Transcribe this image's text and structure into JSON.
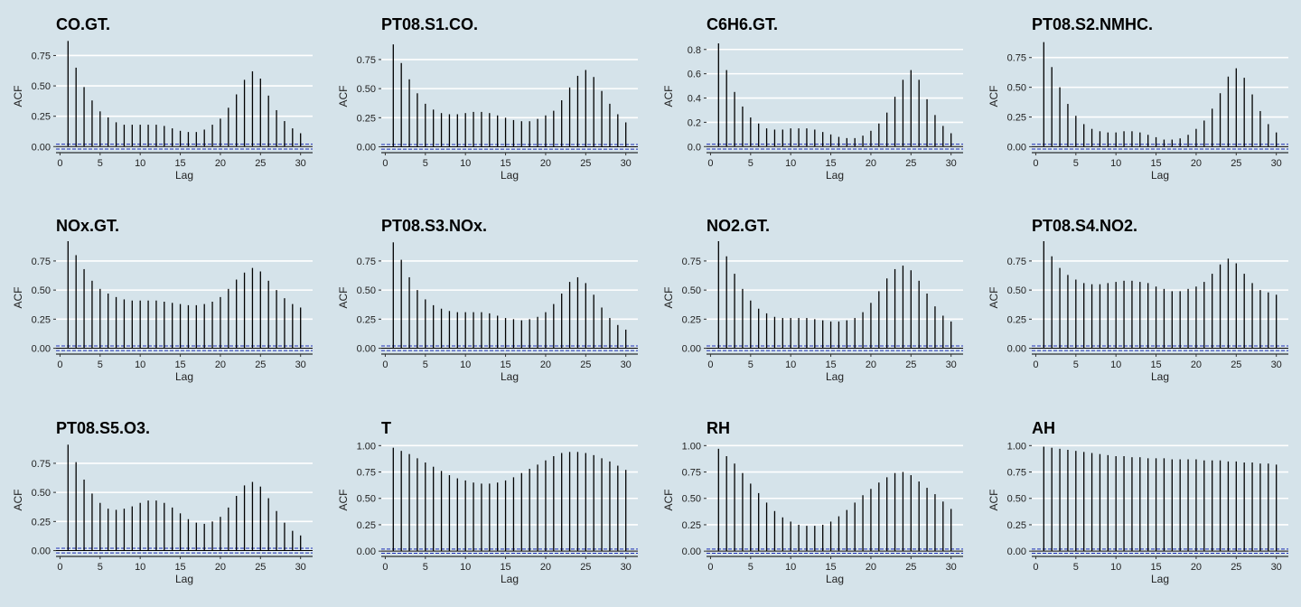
{
  "colors": {
    "background": "#d5e3ea",
    "gridline": "#ffffff",
    "bar": "#000000",
    "confidence_band": "#1f2fb5"
  },
  "chart_data": [
    {
      "type": "bar",
      "title": "CO.GT.",
      "xlabel": "Lag",
      "ylabel": "ACF",
      "xticks": [
        0,
        5,
        10,
        15,
        20,
        25,
        30
      ],
      "yticks": [
        0,
        0.25,
        0.5,
        0.75
      ],
      "ytick_labels": [
        "0.00",
        "0.25",
        "0.50",
        "0.75"
      ],
      "ylim": [
        -0.05,
        0.88
      ],
      "xlim": [
        -0.5,
        31.5
      ],
      "confidence": 0.02,
      "x": [
        1,
        2,
        3,
        4,
        5,
        6,
        7,
        8,
        9,
        10,
        11,
        12,
        13,
        14,
        15,
        16,
        17,
        18,
        19,
        20,
        21,
        22,
        23,
        24,
        25,
        26,
        27,
        28,
        29,
        30
      ],
      "values": [
        0.87,
        0.65,
        0.49,
        0.38,
        0.29,
        0.24,
        0.2,
        0.18,
        0.18,
        0.18,
        0.18,
        0.18,
        0.17,
        0.15,
        0.13,
        0.12,
        0.12,
        0.14,
        0.18,
        0.23,
        0.32,
        0.43,
        0.55,
        0.62,
        0.56,
        0.42,
        0.3,
        0.21,
        0.15,
        0.11
      ]
    },
    {
      "type": "bar",
      "title": "PT08.S1.CO.",
      "xlabel": "Lag",
      "ylabel": "ACF",
      "xticks": [
        0,
        5,
        10,
        15,
        20,
        25,
        30
      ],
      "yticks": [
        0,
        0.25,
        0.5,
        0.75
      ],
      "ytick_labels": [
        "0.00",
        "0.25",
        "0.50",
        "0.75"
      ],
      "ylim": [
        -0.05,
        0.92
      ],
      "xlim": [
        -0.5,
        31.5
      ],
      "confidence": 0.02,
      "x": [
        1,
        2,
        3,
        4,
        5,
        6,
        7,
        8,
        9,
        10,
        11,
        12,
        13,
        14,
        15,
        16,
        17,
        18,
        19,
        20,
        21,
        22,
        23,
        24,
        25,
        26,
        27,
        28,
        29,
        30
      ],
      "values": [
        0.88,
        0.72,
        0.58,
        0.46,
        0.37,
        0.32,
        0.29,
        0.28,
        0.28,
        0.29,
        0.3,
        0.3,
        0.29,
        0.27,
        0.25,
        0.23,
        0.22,
        0.22,
        0.24,
        0.27,
        0.31,
        0.4,
        0.51,
        0.61,
        0.66,
        0.6,
        0.48,
        0.37,
        0.28,
        0.21
      ]
    },
    {
      "type": "bar",
      "title": "C6H6.GT.",
      "xlabel": "Lag",
      "ylabel": "ACF",
      "xticks": [
        0,
        5,
        10,
        15,
        20,
        25,
        30
      ],
      "yticks": [
        0,
        0.2,
        0.4,
        0.6,
        0.8
      ],
      "ytick_labels": [
        "0.0",
        "0.2",
        "0.4",
        "0.6",
        "0.8"
      ],
      "ylim": [
        -0.05,
        0.88
      ],
      "xlim": [
        -0.5,
        31.5
      ],
      "confidence": 0.02,
      "x": [
        1,
        2,
        3,
        4,
        5,
        6,
        7,
        8,
        9,
        10,
        11,
        12,
        13,
        14,
        15,
        16,
        17,
        18,
        19,
        20,
        21,
        22,
        23,
        24,
        25,
        26,
        27,
        28,
        29,
        30
      ],
      "values": [
        0.85,
        0.63,
        0.45,
        0.33,
        0.24,
        0.19,
        0.15,
        0.14,
        0.14,
        0.15,
        0.15,
        0.15,
        0.14,
        0.12,
        0.1,
        0.08,
        0.07,
        0.07,
        0.09,
        0.13,
        0.19,
        0.28,
        0.41,
        0.55,
        0.63,
        0.55,
        0.39,
        0.26,
        0.17,
        0.11
      ]
    },
    {
      "type": "bar",
      "title": "PT08.S2.NMHC.",
      "xlabel": "Lag",
      "ylabel": "ACF",
      "xticks": [
        0,
        5,
        10,
        15,
        20,
        25,
        30
      ],
      "yticks": [
        0,
        0.25,
        0.5,
        0.75
      ],
      "ytick_labels": [
        "0.00",
        "0.25",
        "0.50",
        "0.75"
      ],
      "ylim": [
        -0.05,
        0.9
      ],
      "xlim": [
        -0.5,
        31.5
      ],
      "confidence": 0.02,
      "x": [
        1,
        2,
        3,
        4,
        5,
        6,
        7,
        8,
        9,
        10,
        11,
        12,
        13,
        14,
        15,
        16,
        17,
        18,
        19,
        20,
        21,
        22,
        23,
        24,
        25,
        26,
        27,
        28,
        29,
        30
      ],
      "values": [
        0.88,
        0.67,
        0.5,
        0.36,
        0.26,
        0.19,
        0.15,
        0.13,
        0.12,
        0.12,
        0.13,
        0.13,
        0.12,
        0.1,
        0.08,
        0.06,
        0.06,
        0.07,
        0.1,
        0.15,
        0.22,
        0.32,
        0.45,
        0.59,
        0.66,
        0.58,
        0.44,
        0.3,
        0.19,
        0.12
      ]
    },
    {
      "type": "bar",
      "title": "NOx.GT.",
      "xlabel": "Lag",
      "ylabel": "ACF",
      "xticks": [
        0,
        5,
        10,
        15,
        20,
        25,
        30
      ],
      "yticks": [
        0,
        0.25,
        0.5,
        0.75
      ],
      "ytick_labels": [
        "0.00",
        "0.25",
        "0.50",
        "0.75"
      ],
      "ylim": [
        -0.05,
        0.92
      ],
      "xlim": [
        -0.5,
        31.5
      ],
      "confidence": 0.02,
      "x": [
        1,
        2,
        3,
        4,
        5,
        6,
        7,
        8,
        9,
        10,
        11,
        12,
        13,
        14,
        15,
        16,
        17,
        18,
        19,
        20,
        21,
        22,
        23,
        24,
        25,
        26,
        27,
        28,
        29,
        30
      ],
      "values": [
        0.92,
        0.8,
        0.68,
        0.58,
        0.51,
        0.47,
        0.44,
        0.42,
        0.41,
        0.41,
        0.41,
        0.41,
        0.4,
        0.39,
        0.38,
        0.37,
        0.37,
        0.38,
        0.4,
        0.44,
        0.51,
        0.59,
        0.65,
        0.69,
        0.66,
        0.58,
        0.5,
        0.43,
        0.38,
        0.35
      ]
    },
    {
      "type": "bar",
      "title": "PT08.S3.NOx.",
      "xlabel": "Lag",
      "ylabel": "ACF",
      "xticks": [
        0,
        5,
        10,
        15,
        20,
        25,
        30
      ],
      "yticks": [
        0,
        0.25,
        0.5,
        0.75
      ],
      "ytick_labels": [
        "0.00",
        "0.25",
        "0.50",
        "0.75"
      ],
      "ylim": [
        -0.05,
        0.92
      ],
      "xlim": [
        -0.5,
        31.5
      ],
      "confidence": 0.02,
      "x": [
        1,
        2,
        3,
        4,
        5,
        6,
        7,
        8,
        9,
        10,
        11,
        12,
        13,
        14,
        15,
        16,
        17,
        18,
        19,
        20,
        21,
        22,
        23,
        24,
        25,
        26,
        27,
        28,
        29,
        30
      ],
      "values": [
        0.91,
        0.76,
        0.61,
        0.5,
        0.42,
        0.37,
        0.34,
        0.32,
        0.31,
        0.31,
        0.31,
        0.31,
        0.3,
        0.28,
        0.26,
        0.25,
        0.24,
        0.25,
        0.27,
        0.31,
        0.38,
        0.47,
        0.57,
        0.61,
        0.56,
        0.46,
        0.35,
        0.26,
        0.2,
        0.16
      ]
    },
    {
      "type": "bar",
      "title": "NO2.GT.",
      "xlabel": "Lag",
      "ylabel": "ACF",
      "xticks": [
        0,
        5,
        10,
        15,
        20,
        25,
        30
      ],
      "yticks": [
        0,
        0.25,
        0.5,
        0.75
      ],
      "ytick_labels": [
        "0.00",
        "0.25",
        "0.50",
        "0.75"
      ],
      "ylim": [
        -0.05,
        0.92
      ],
      "xlim": [
        -0.5,
        31.5
      ],
      "confidence": 0.02,
      "x": [
        1,
        2,
        3,
        4,
        5,
        6,
        7,
        8,
        9,
        10,
        11,
        12,
        13,
        14,
        15,
        16,
        17,
        18,
        19,
        20,
        21,
        22,
        23,
        24,
        25,
        26,
        27,
        28,
        29,
        30
      ],
      "values": [
        0.92,
        0.79,
        0.64,
        0.51,
        0.41,
        0.34,
        0.3,
        0.27,
        0.26,
        0.26,
        0.26,
        0.26,
        0.25,
        0.24,
        0.23,
        0.23,
        0.24,
        0.26,
        0.31,
        0.39,
        0.49,
        0.6,
        0.68,
        0.71,
        0.67,
        0.58,
        0.47,
        0.36,
        0.28,
        0.23
      ]
    },
    {
      "type": "bar",
      "title": "PT08.S4.NO2.",
      "xlabel": "Lag",
      "ylabel": "ACF",
      "xticks": [
        0,
        5,
        10,
        15,
        20,
        25,
        30
      ],
      "yticks": [
        0,
        0.25,
        0.5,
        0.75
      ],
      "ytick_labels": [
        "0.00",
        "0.25",
        "0.50",
        "0.75"
      ],
      "ylim": [
        -0.05,
        0.92
      ],
      "xlim": [
        -0.5,
        31.5
      ],
      "confidence": 0.02,
      "x": [
        1,
        2,
        3,
        4,
        5,
        6,
        7,
        8,
        9,
        10,
        11,
        12,
        13,
        14,
        15,
        16,
        17,
        18,
        19,
        20,
        21,
        22,
        23,
        24,
        25,
        26,
        27,
        28,
        29,
        30
      ],
      "values": [
        0.92,
        0.79,
        0.69,
        0.63,
        0.59,
        0.56,
        0.55,
        0.55,
        0.56,
        0.57,
        0.58,
        0.58,
        0.57,
        0.56,
        0.53,
        0.51,
        0.49,
        0.49,
        0.51,
        0.53,
        0.57,
        0.64,
        0.72,
        0.77,
        0.73,
        0.64,
        0.56,
        0.5,
        0.48,
        0.46
      ]
    },
    {
      "type": "bar",
      "title": "PT08.S5.O3.",
      "xlabel": "Lag",
      "ylabel": "ACF",
      "xticks": [
        0,
        5,
        10,
        15,
        20,
        25,
        30
      ],
      "yticks": [
        0,
        0.25,
        0.5,
        0.75
      ],
      "ytick_labels": [
        "0.00",
        "0.25",
        "0.50",
        "0.75"
      ],
      "ylim": [
        -0.05,
        0.92
      ],
      "xlim": [
        -0.5,
        31.5
      ],
      "confidence": 0.02,
      "x": [
        1,
        2,
        3,
        4,
        5,
        6,
        7,
        8,
        9,
        10,
        11,
        12,
        13,
        14,
        15,
        16,
        17,
        18,
        19,
        20,
        21,
        22,
        23,
        24,
        25,
        26,
        27,
        28,
        29,
        30
      ],
      "values": [
        0.91,
        0.76,
        0.61,
        0.49,
        0.41,
        0.36,
        0.35,
        0.36,
        0.38,
        0.41,
        0.43,
        0.43,
        0.41,
        0.37,
        0.32,
        0.27,
        0.24,
        0.23,
        0.25,
        0.29,
        0.37,
        0.47,
        0.56,
        0.59,
        0.55,
        0.45,
        0.34,
        0.24,
        0.17,
        0.13
      ]
    },
    {
      "type": "bar",
      "title": "T",
      "xlabel": "Lag",
      "ylabel": "ACF",
      "xticks": [
        0,
        5,
        10,
        15,
        20,
        25,
        30
      ],
      "yticks": [
        0,
        0.25,
        0.5,
        0.75,
        1.0
      ],
      "ytick_labels": [
        "0.00",
        "0.25",
        "0.50",
        "0.75",
        "1.00"
      ],
      "ylim": [
        -0.05,
        1.02
      ],
      "xlim": [
        -0.5,
        31.5
      ],
      "confidence": 0.02,
      "x": [
        1,
        2,
        3,
        4,
        5,
        6,
        7,
        8,
        9,
        10,
        11,
        12,
        13,
        14,
        15,
        16,
        17,
        18,
        19,
        20,
        21,
        22,
        23,
        24,
        25,
        26,
        27,
        28,
        29,
        30
      ],
      "values": [
        0.98,
        0.95,
        0.92,
        0.88,
        0.84,
        0.8,
        0.76,
        0.72,
        0.69,
        0.67,
        0.65,
        0.64,
        0.64,
        0.65,
        0.67,
        0.7,
        0.74,
        0.78,
        0.82,
        0.86,
        0.9,
        0.93,
        0.94,
        0.94,
        0.93,
        0.91,
        0.88,
        0.85,
        0.81,
        0.77
      ]
    },
    {
      "type": "bar",
      "title": "RH",
      "xlabel": "Lag",
      "ylabel": "ACF",
      "xticks": [
        0,
        5,
        10,
        15,
        20,
        25,
        30
      ],
      "yticks": [
        0,
        0.25,
        0.5,
        0.75,
        1.0
      ],
      "ytick_labels": [
        "0.00",
        "0.25",
        "0.50",
        "0.75",
        "1.00"
      ],
      "ylim": [
        -0.05,
        1.02
      ],
      "xlim": [
        -0.5,
        31.5
      ],
      "confidence": 0.02,
      "x": [
        1,
        2,
        3,
        4,
        5,
        6,
        7,
        8,
        9,
        10,
        11,
        12,
        13,
        14,
        15,
        16,
        17,
        18,
        19,
        20,
        21,
        22,
        23,
        24,
        25,
        26,
        27,
        28,
        29,
        30
      ],
      "values": [
        0.97,
        0.9,
        0.83,
        0.74,
        0.64,
        0.55,
        0.46,
        0.38,
        0.32,
        0.28,
        0.25,
        0.24,
        0.24,
        0.25,
        0.28,
        0.33,
        0.39,
        0.46,
        0.53,
        0.59,
        0.65,
        0.7,
        0.74,
        0.75,
        0.72,
        0.66,
        0.6,
        0.54,
        0.47,
        0.4
      ]
    },
    {
      "type": "bar",
      "title": "AH",
      "xlabel": "Lag",
      "ylabel": "ACF",
      "xticks": [
        0,
        5,
        10,
        15,
        20,
        25,
        30
      ],
      "yticks": [
        0,
        0.25,
        0.5,
        0.75,
        1.0
      ],
      "ytick_labels": [
        "0.00",
        "0.25",
        "0.50",
        "0.75",
        "1.00"
      ],
      "ylim": [
        -0.05,
        1.02
      ],
      "xlim": [
        -0.5,
        31.5
      ],
      "confidence": 0.02,
      "x": [
        1,
        2,
        3,
        4,
        5,
        6,
        7,
        8,
        9,
        10,
        11,
        12,
        13,
        14,
        15,
        16,
        17,
        18,
        19,
        20,
        21,
        22,
        23,
        24,
        25,
        26,
        27,
        28,
        29,
        30
      ],
      "values": [
        0.99,
        0.98,
        0.97,
        0.96,
        0.95,
        0.94,
        0.93,
        0.92,
        0.91,
        0.9,
        0.9,
        0.89,
        0.89,
        0.88,
        0.88,
        0.88,
        0.87,
        0.87,
        0.87,
        0.87,
        0.86,
        0.86,
        0.86,
        0.85,
        0.85,
        0.84,
        0.84,
        0.83,
        0.83,
        0.82
      ]
    }
  ]
}
